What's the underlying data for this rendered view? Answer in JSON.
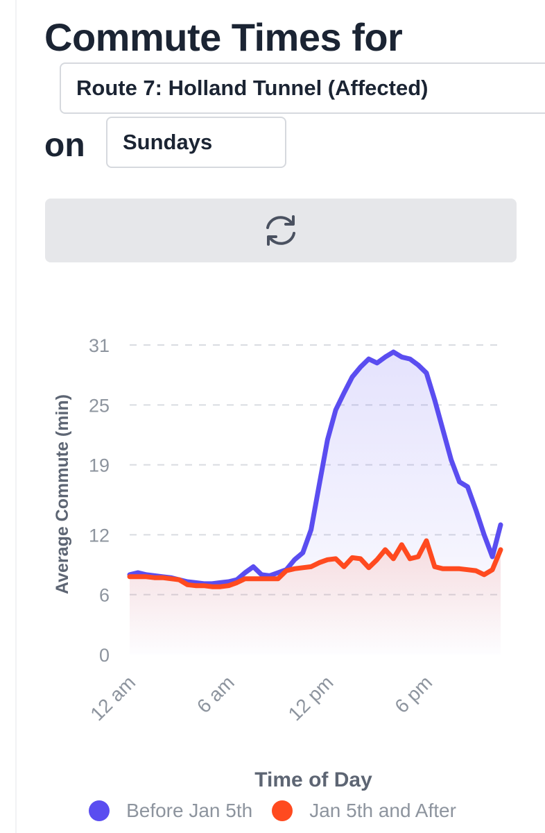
{
  "header": {
    "title": "Commute Times for",
    "route_value": "Route 7: Holland Tunnel (Affected)",
    "on_label": "on",
    "day_value": "Sundays"
  },
  "refresh_icon": "refresh-icon",
  "colors": {
    "before": "#5a4df0",
    "after": "#ff4a1f",
    "grid": "#d9dce1"
  },
  "chart_data": {
    "type": "line",
    "xlabel": "Time of Day",
    "ylabel": "Average Commute (min)",
    "ylim": [
      0,
      31
    ],
    "yticks": [
      "0",
      "6",
      "12",
      "19",
      "25",
      "31"
    ],
    "xlim": [
      0,
      22.5
    ],
    "xticks": [
      {
        "hour": 0,
        "label": "12 am"
      },
      {
        "hour": 6,
        "label": "6 am"
      },
      {
        "hour": 12,
        "label": "12 pm"
      },
      {
        "hour": 18,
        "label": "6 pm"
      }
    ],
    "legend_position": "bottom",
    "grid": true,
    "series": [
      {
        "name": "Before Jan 5th",
        "color": "#5a4df0",
        "x": [
          0,
          0.5,
          1,
          1.5,
          2,
          2.5,
          3,
          3.5,
          4,
          4.5,
          5,
          5.5,
          6,
          6.5,
          7,
          7.5,
          8,
          8.5,
          9,
          9.5,
          10,
          10.5,
          11,
          11.5,
          12,
          12.5,
          13,
          13.5,
          14,
          14.5,
          15,
          15.5,
          16,
          16.5,
          17,
          17.5,
          18,
          18.5,
          19,
          19.5,
          20,
          20.5,
          21,
          21.5,
          22,
          22.5
        ],
        "values": [
          8.0,
          8.2,
          8.0,
          7.9,
          7.8,
          7.7,
          7.5,
          7.3,
          7.2,
          7.1,
          7.1,
          7.2,
          7.3,
          7.5,
          8.2,
          8.8,
          8.0,
          7.9,
          8.2,
          8.5,
          9.5,
          10.2,
          12.5,
          17.0,
          21.5,
          24.5,
          26.2,
          27.8,
          28.8,
          29.6,
          29.2,
          29.8,
          30.3,
          29.8,
          29.6,
          29.0,
          28.2,
          25.5,
          22.5,
          19.5,
          17.3,
          16.8,
          14.5,
          12.0,
          9.8,
          13.0
        ]
      },
      {
        "name": "Jan 5th and After",
        "color": "#ff4a1f",
        "x": [
          0,
          0.5,
          1,
          1.5,
          2,
          2.5,
          3,
          3.5,
          4,
          4.5,
          5,
          5.5,
          6,
          6.5,
          7,
          7.5,
          8,
          8.5,
          9,
          9.5,
          10,
          10.5,
          11,
          11.5,
          12,
          12.5,
          13,
          13.5,
          14,
          14.5,
          15,
          15.5,
          16,
          16.5,
          17,
          17.5,
          18,
          18.5,
          19,
          19.5,
          20,
          20.5,
          21,
          21.5,
          22,
          22.5
        ],
        "values": [
          7.8,
          7.8,
          7.8,
          7.7,
          7.7,
          7.6,
          7.5,
          7.0,
          6.9,
          6.9,
          6.8,
          6.8,
          6.9,
          7.2,
          7.6,
          7.6,
          7.6,
          7.6,
          7.6,
          8.4,
          8.6,
          8.7,
          8.8,
          9.2,
          9.5,
          9.6,
          8.8,
          9.7,
          9.6,
          8.7,
          9.5,
          10.5,
          9.6,
          11.0,
          9.6,
          9.8,
          11.4,
          8.8,
          8.6,
          8.6,
          8.6,
          8.5,
          8.4,
          8.0,
          8.5,
          10.5
        ]
      }
    ]
  }
}
